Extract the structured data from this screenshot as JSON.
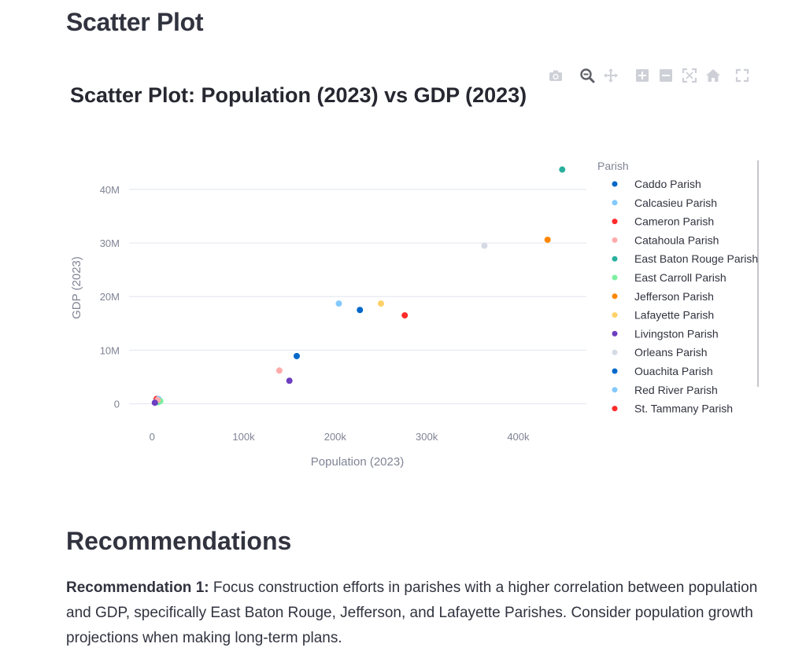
{
  "page": {
    "heading": "Scatter Plot",
    "section_heading": "Recommendations",
    "recommendation": {
      "label": "Recommendation 1:",
      "text": " Focus construction efforts in parishes with a higher correlation between population and GDP, specifically East Baton Rouge, Jefferson, and Lafayette Parishes. Consider population growth projections when making long-term plans."
    }
  },
  "modebar": {
    "icons": [
      "camera-icon",
      "zoom-icon",
      "pan-icon",
      "zoom-in-icon",
      "zoom-out-icon",
      "autoscale-icon",
      "home-icon",
      "fullscreen-icon"
    ],
    "color": "#cdd0d6"
  },
  "chart_data": {
    "type": "scatter",
    "title": "Scatter Plot: Population (2023) vs GDP (2023)",
    "xlabel": "Population (2023)",
    "ylabel": "GDP (2023)",
    "xlim": [
      -32000,
      477000
    ],
    "ylim": [
      -3000000,
      46000000
    ],
    "x_ticks": [
      0,
      100000,
      200000,
      300000,
      400000
    ],
    "x_tick_labels": [
      "0",
      "100k",
      "200k",
      "300k",
      "400k"
    ],
    "y_ticks": [
      0,
      10000000,
      20000000,
      30000000,
      40000000
    ],
    "y_tick_labels": [
      "0",
      "10M",
      "20M",
      "30M",
      "40M"
    ],
    "grid": "y-only",
    "legend": {
      "title": "Parish",
      "placement": "right"
    },
    "series": [
      {
        "name": "Caddo Parish",
        "color": "#0068c9",
        "x": [
          158000
        ],
        "y": [
          8900000
        ]
      },
      {
        "name": "Calcasieu Parish",
        "color": "#83c9ff",
        "x": [
          204000
        ],
        "y": [
          18700000
        ]
      },
      {
        "name": "Cameron Parish",
        "color": "#ff2b2b",
        "x": [
          5000
        ],
        "y": [
          900000
        ]
      },
      {
        "name": "Catahoula Parish",
        "color": "#ffabab",
        "x": [
          139000
        ],
        "y": [
          6200000
        ]
      },
      {
        "name": "East Baton Rouge Parish",
        "color": "#29b09d",
        "x": [
          448000
        ],
        "y": [
          43700000
        ]
      },
      {
        "name": "East Carroll Parish",
        "color": "#7defa1",
        "x": [
          7000
        ],
        "y": [
          300000
        ]
      },
      {
        "name": "Jefferson Parish",
        "color": "#ff8700",
        "x": [
          432000
        ],
        "y": [
          30600000
        ]
      },
      {
        "name": "Lafayette Parish",
        "color": "#ffd16a",
        "x": [
          250000
        ],
        "y": [
          18700000
        ]
      },
      {
        "name": "Livingston Parish",
        "color": "#6d3fc0",
        "x": [
          150000
        ],
        "y": [
          4300000
        ]
      },
      {
        "name": "Orleans Parish",
        "color": "#d5dae5",
        "x": [
          363000
        ],
        "y": [
          29500000
        ]
      },
      {
        "name": "Ouachita Parish",
        "color": "#0068c9",
        "x": [
          227000
        ],
        "y": [
          17500000
        ]
      },
      {
        "name": "Red River Parish",
        "color": "#83c9ff",
        "x": [
          7000
        ],
        "y": [
          900000
        ]
      },
      {
        "name": "St. Tammany Parish",
        "color": "#ff2b2b",
        "x": [
          276000
        ],
        "y": [
          16500000
        ]
      },
      {
        "name": "",
        "color": "#29b09d",
        "x": [
          4000
        ],
        "y": [
          300000
        ]
      },
      {
        "name": "",
        "color": "#7defa1",
        "x": [
          9000
        ],
        "y": [
          500000
        ]
      },
      {
        "name": "",
        "color": "#ffabab",
        "x": [
          6000
        ],
        "y": [
          700000
        ]
      },
      {
        "name": "",
        "color": "#6d3fc0",
        "x": [
          3000
        ],
        "y": [
          200000
        ]
      }
    ]
  }
}
